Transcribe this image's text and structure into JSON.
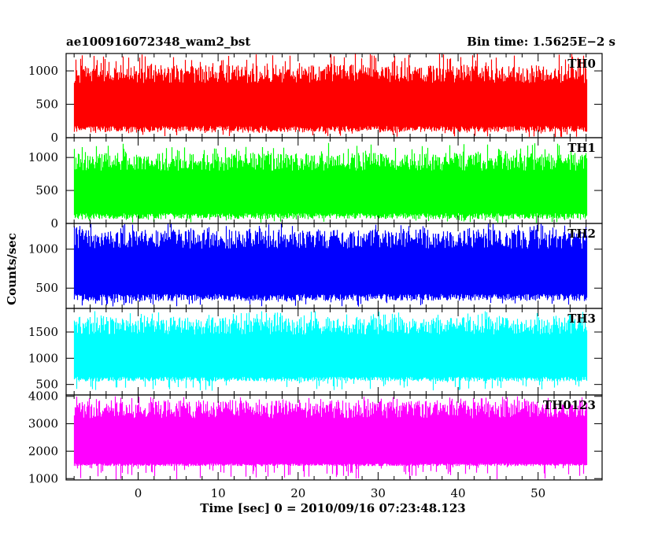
{
  "header": {
    "title": "ae100916072348_wam2_bst",
    "bin_time": "Bin time: 1.5625E−2 s"
  },
  "chart_data": {
    "type": "line",
    "title": "ae100916072348_wam2_bst",
    "xlabel": "Time [sec] 0 = 2010/09/16 07:23:48.123",
    "ylabel": "Counts/sec",
    "xlim": [
      -9.0,
      58.0
    ],
    "x_ticks": [
      0,
      10,
      20,
      30,
      40,
      50
    ],
    "data_range": [
      -8,
      56
    ],
    "bin_time_sec": 0.015625,
    "grid": false,
    "legend": "none",
    "panels": [
      {
        "name": "TH0",
        "color": "#ff0000",
        "ylim": [
          0,
          1260
        ],
        "y_ticks": [
          0,
          500,
          1000
        ],
        "envelope": {
          "typical_low": 130,
          "typical_high": 900,
          "min": 10,
          "max": 1260
        }
      },
      {
        "name": "TH1",
        "color": "#00ff00",
        "ylim": [
          0,
          1300
        ],
        "y_ticks": [
          0,
          500,
          1000
        ],
        "envelope": {
          "typical_low": 110,
          "typical_high": 880,
          "min": 10,
          "max": 1220
        }
      },
      {
        "name": "TH2",
        "color": "#0000ff",
        "ylim": [
          240,
          1330
        ],
        "y_ticks": [
          500,
          1000
        ],
        "envelope": {
          "typical_low": 380,
          "typical_high": 1080,
          "min": 260,
          "max": 1330
        }
      },
      {
        "name": "TH3",
        "color": "#00ffff",
        "ylim": [
          300,
          1950
        ],
        "y_ticks": [
          500,
          1000,
          1500
        ],
        "envelope": {
          "typical_low": 600,
          "typical_high": 1550,
          "min": 380,
          "max": 1900
        }
      },
      {
        "name": "TH0123",
        "color": "#ff00ff",
        "ylim": [
          950,
          4050
        ],
        "y_ticks": [
          1000,
          2000,
          3000,
          4000
        ],
        "envelope": {
          "typical_low": 1500,
          "typical_high": 3400,
          "min": 960,
          "max": 4000
        }
      }
    ]
  }
}
